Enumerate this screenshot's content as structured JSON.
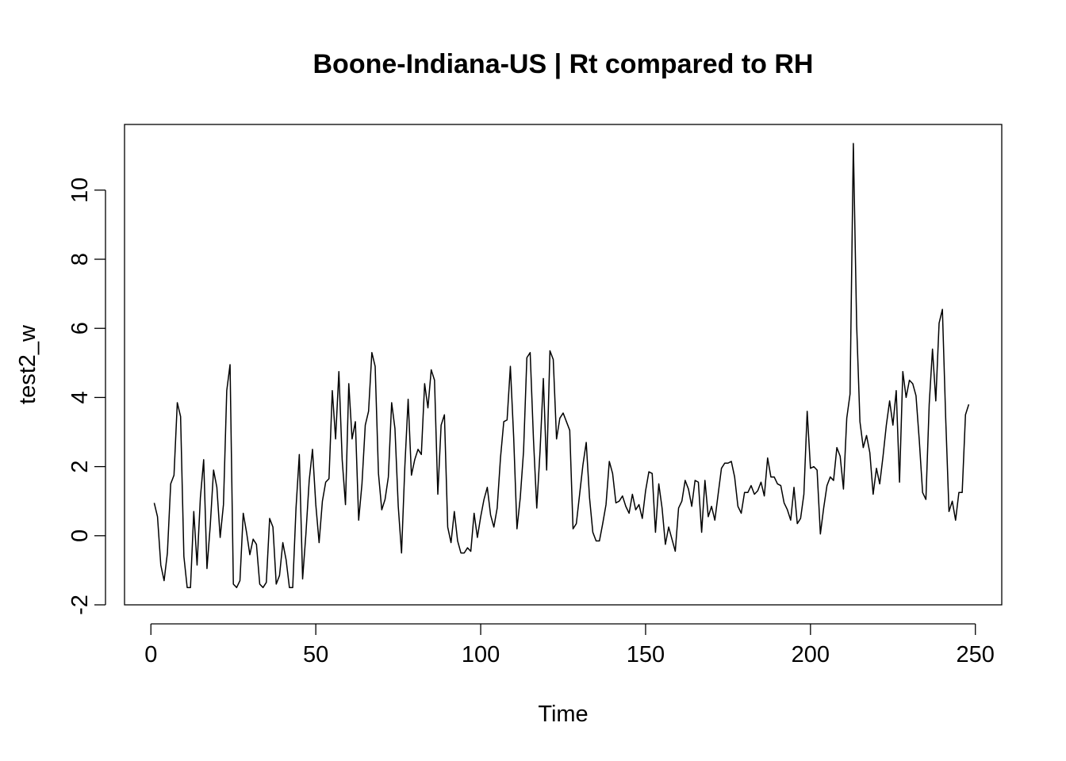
{
  "chart_data": {
    "type": "line",
    "title": "Boone-Indiana-US | Rt compared to RH",
    "xlabel": "Time",
    "ylabel": "test2_w",
    "xlim": [
      -8,
      258
    ],
    "ylim": [
      -2,
      11.9
    ],
    "x_ticks": [
      0,
      50,
      100,
      150,
      200,
      250
    ],
    "y_ticks": [
      -2,
      0,
      2,
      4,
      6,
      8,
      10
    ],
    "x_tick_labels": [
      "0",
      "50",
      "100",
      "150",
      "200",
      "250"
    ],
    "y_tick_labels": [
      "-2",
      "0",
      "2",
      "4",
      "6",
      "8",
      "10"
    ],
    "grid": false,
    "legend": "none",
    "line_color": "#000000",
    "series": [
      {
        "x_start": 1,
        "x_step": 1,
        "values": [
          0.95,
          0.55,
          -0.85,
          -1.3,
          -0.5,
          1.5,
          1.75,
          3.85,
          3.45,
          -0.6,
          -1.5,
          -1.5,
          0.7,
          -0.85,
          1.1,
          2.2,
          -0.95,
          0.3,
          1.9,
          1.4,
          -0.05,
          0.9,
          4.2,
          4.95,
          -1.4,
          -1.5,
          -1.3,
          0.65,
          0.1,
          -0.55,
          -0.1,
          -0.25,
          -1.4,
          -1.5,
          -1.35,
          0.5,
          0.25,
          -1.4,
          -1.15,
          -0.2,
          -0.7,
          -1.5,
          -1.5,
          0.8,
          2.35,
          -1.25,
          0.05,
          1.6,
          2.5,
          0.9,
          -0.2,
          1.0,
          1.55,
          1.65,
          4.2,
          2.8,
          4.75,
          2.2,
          0.9,
          4.4,
          2.8,
          3.3,
          0.45,
          1.5,
          3.2,
          3.6,
          5.3,
          4.9,
          1.8,
          0.75,
          1.05,
          1.7,
          3.85,
          3.1,
          0.85,
          -0.5,
          2.0,
          3.95,
          1.75,
          2.2,
          2.5,
          2.35,
          4.4,
          3.7,
          4.8,
          4.5,
          1.2,
          3.2,
          3.5,
          0.25,
          -0.2,
          0.7,
          -0.15,
          -0.5,
          -0.5,
          -0.35,
          -0.45,
          0.65,
          -0.05,
          0.55,
          1.05,
          1.4,
          0.6,
          0.25,
          0.8,
          2.25,
          3.3,
          3.35,
          4.9,
          2.85,
          0.2,
          1.1,
          2.45,
          5.15,
          5.3,
          2.8,
          0.8,
          2.45,
          4.55,
          1.9,
          5.35,
          5.1,
          2.8,
          3.4,
          3.55,
          3.3,
          3.05,
          0.2,
          0.35,
          1.2,
          2.05,
          2.7,
          1.1,
          0.1,
          -0.15,
          -0.15,
          0.35,
          0.9,
          2.15,
          1.8,
          0.95,
          1.0,
          1.15,
          0.85,
          0.65,
          1.2,
          0.75,
          0.9,
          0.5,
          1.3,
          1.85,
          1.8,
          0.1,
          1.5,
          0.8,
          -0.25,
          0.25,
          -0.1,
          -0.45,
          0.8,
          1.0,
          1.6,
          1.35,
          0.85,
          1.6,
          1.55,
          0.1,
          1.6,
          0.55,
          0.85,
          0.45,
          1.2,
          1.95,
          2.1,
          2.1,
          2.15,
          1.7,
          0.85,
          0.65,
          1.25,
          1.25,
          1.45,
          1.2,
          1.3,
          1.55,
          1.15,
          2.25,
          1.7,
          1.7,
          1.5,
          1.45,
          0.95,
          0.75,
          0.45,
          1.4,
          0.35,
          0.5,
          1.2,
          3.6,
          1.95,
          2.0,
          1.9,
          0.05,
          0.8,
          1.45,
          1.7,
          1.6,
          2.55,
          2.3,
          1.35,
          3.4,
          4.1,
          11.35,
          6.1,
          3.3,
          2.55,
          2.9,
          2.4,
          1.2,
          1.95,
          1.5,
          2.3,
          3.2,
          3.9,
          3.2,
          4.2,
          1.55,
          4.75,
          4.0,
          4.5,
          4.4,
          4.05,
          2.75,
          1.25,
          1.05,
          3.8,
          5.4,
          3.9,
          6.15,
          6.55,
          3.4,
          0.7,
          1.0,
          0.45,
          1.25,
          1.25,
          3.5,
          3.8
        ]
      }
    ]
  }
}
